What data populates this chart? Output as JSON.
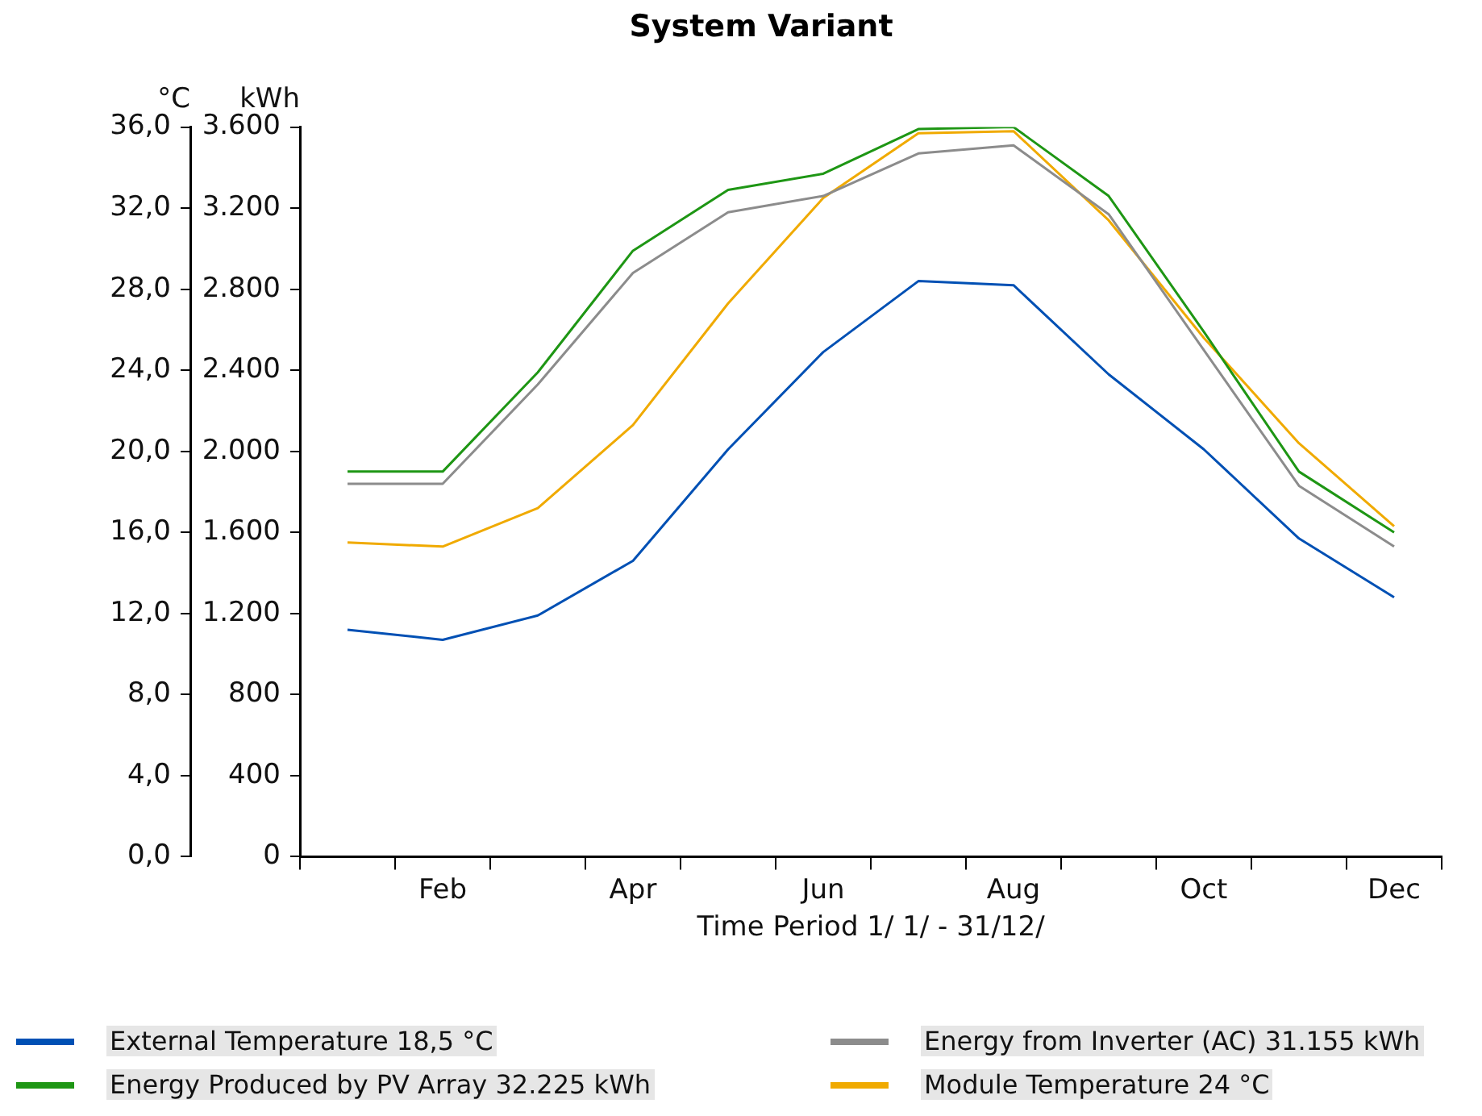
{
  "chart_data": {
    "type": "line",
    "title": "System Variant",
    "xlabel": "Time Period 1/ 1/ - 31/12/",
    "ylabel": "°C",
    "y2label": "kWh",
    "categories": [
      null,
      "Feb",
      null,
      "Apr",
      null,
      "Jun",
      null,
      "Aug",
      null,
      "Oct",
      null,
      "Dec"
    ],
    "series": [
      {
        "name": "External Temperature  18,5  °C",
        "color": "#0050b4",
        "values": [
          11.2,
          10.7,
          11.9,
          14.6,
          20.1,
          24.9,
          28.4,
          28.2,
          23.8,
          20.1,
          15.7,
          12.8
        ]
      },
      {
        "name": "Energy from Inverter (AC)  31.155  kWh",
        "color": "#8c8c8c",
        "axis": "y2",
        "values": [
          1840,
          1840,
          2330,
          2880,
          3180,
          3260,
          3470,
          3510,
          3170,
          2500,
          1830,
          1530
        ]
      },
      {
        "name": "Energy Produced by PV Array  32.225  kWh",
        "color": "#1e9614",
        "axis": "y2",
        "values": [
          1900,
          1900,
          2390,
          2990,
          3290,
          3370,
          3590,
          3600,
          3260,
          2590,
          1900,
          1600
        ]
      },
      {
        "name": "Module Temperature  24  °C",
        "color": "#f0aa00",
        "values": [
          15.5,
          15.3,
          17.2,
          21.3,
          27.3,
          32.5,
          35.7,
          35.8,
          31.4,
          25.6,
          20.4,
          16.3
        ]
      }
    ],
    "ylim": [
      0,
      36
    ],
    "yticks": [
      {
        "value": 0,
        "label": "0,0"
      },
      {
        "value": 4,
        "label": "4,0"
      },
      {
        "value": 8,
        "label": "8,0"
      },
      {
        "value": 12,
        "label": "12,0"
      },
      {
        "value": 16,
        "label": "16,0"
      },
      {
        "value": 20,
        "label": "20,0"
      },
      {
        "value": 24,
        "label": "24,0"
      },
      {
        "value": 28,
        "label": "28,0"
      },
      {
        "value": 32,
        "label": "32,0"
      },
      {
        "value": 36,
        "label": "36,0"
      }
    ],
    "y2lim": [
      0,
      3600
    ],
    "y2ticks": [
      0,
      {
        "value": 400,
        "label": "400"
      },
      {
        "value": 800,
        "label": "800"
      },
      {
        "value": 1200,
        "label": "1.200"
      },
      {
        "value": 1600,
        "label": "1.600"
      },
      {
        "value": 2000,
        "label": "2.000"
      },
      {
        "value": 2400,
        "label": "2.400"
      },
      {
        "value": 2800,
        "label": "2.800"
      },
      {
        "value": 3200,
        "label": "3.200"
      },
      {
        "value": 3600,
        "label": "3.600"
      }
    ],
    "legend": "bottom",
    "marker": "none",
    "line_style": "solid"
  }
}
